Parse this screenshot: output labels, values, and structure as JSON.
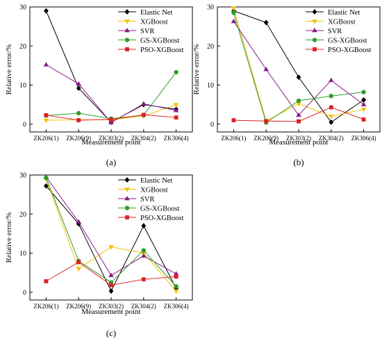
{
  "series_styles": [
    {
      "name": "Elastic Net",
      "color": "#000000",
      "marker": "diamond"
    },
    {
      "name": "XGBoost",
      "color": "#f2c200",
      "marker": "triangle-down"
    },
    {
      "name": "SVR",
      "color": "#8b1a8b",
      "marker": "triangle-up"
    },
    {
      "name": "GS-XGBoost",
      "color": "#2e9e2e",
      "marker": "circle"
    },
    {
      "name": "PSO-XGBoost",
      "color": "#e02020",
      "marker": "square"
    }
  ],
  "chart_data": [
    {
      "type": "line",
      "panel_label": "(a)",
      "xlabel": "Measurement point",
      "ylabel": "Relative error/%",
      "categories": [
        "ZK206(1)",
        "ZK206(9)",
        "ZK303(2)",
        "ZK304(2)",
        "ZK306(4)"
      ],
      "ylim": [
        -2,
        30
      ],
      "yticks": [
        0,
        10,
        20,
        30
      ],
      "legend_position": "top-right",
      "series": [
        {
          "name": "Elastic Net",
          "values": [
            29.0,
            9.2,
            0.5,
            5.0,
            3.8
          ]
        },
        {
          "name": "XGBoost",
          "values": [
            1.0,
            1.1,
            1.1,
            2.1,
            5.0
          ]
        },
        {
          "name": "SVR",
          "values": [
            15.2,
            10.3,
            0.4,
            5.2,
            3.5
          ]
        },
        {
          "name": "GS-XGBoost",
          "values": [
            2.2,
            2.8,
            1.4,
            2.3,
            13.3
          ]
        },
        {
          "name": "PSO-XGBoost",
          "values": [
            2.3,
            1.0,
            1.2,
            2.4,
            1.7
          ]
        }
      ]
    },
    {
      "type": "line",
      "panel_label": "(b)",
      "xlabel": "Measurement point",
      "ylabel": "Relative error/%",
      "categories": [
        "ZK206(1)",
        "ZK206(9)",
        "ZK303(2)",
        "ZK304(2)",
        "ZK306(4)"
      ],
      "ylim": [
        -2,
        30
      ],
      "yticks": [
        0,
        10,
        20,
        30
      ],
      "legend_position": "top-right",
      "series": [
        {
          "name": "Elastic Net",
          "values": [
            29.0,
            26.0,
            12.0,
            0.5,
            6.2
          ]
        },
        {
          "name": "XGBoost",
          "values": [
            29.7,
            0.8,
            5.2,
            2.0,
            3.8
          ]
        },
        {
          "name": "SVR",
          "values": [
            26.3,
            14.0,
            2.3,
            11.2,
            5.0
          ]
        },
        {
          "name": "GS-XGBoost",
          "values": [
            28.5,
            0.4,
            6.0,
            7.2,
            8.2
          ]
        },
        {
          "name": "PSO-XGBoost",
          "values": [
            1.0,
            0.8,
            0.7,
            4.3,
            1.2
          ]
        }
      ]
    },
    {
      "type": "line",
      "panel_label": "(c)",
      "xlabel": "Measurement point",
      "ylabel": "Relative error/%",
      "categories": [
        "ZK206(1)",
        "ZK206(9)",
        "ZK303(2)",
        "ZK304(2)",
        "ZK306(4)"
      ],
      "ylim": [
        -2,
        30
      ],
      "yticks": [
        0,
        10,
        20,
        30
      ],
      "legend_position": "top-right",
      "series": [
        {
          "name": "Elastic Net",
          "values": [
            27.2,
            17.5,
            0.3,
            17.0,
            1.0
          ]
        },
        {
          "name": "XGBoost",
          "values": [
            29.0,
            6.0,
            11.6,
            10.0,
            0.3
          ]
        },
        {
          "name": "SVR",
          "values": [
            29.5,
            18.0,
            4.3,
            9.3,
            4.7
          ]
        },
        {
          "name": "GS-XGBoost",
          "values": [
            29.3,
            8.0,
            2.5,
            10.7,
            1.5
          ]
        },
        {
          "name": "PSO-XGBoost",
          "values": [
            2.8,
            7.7,
            1.8,
            3.3,
            4.0
          ]
        }
      ]
    }
  ]
}
